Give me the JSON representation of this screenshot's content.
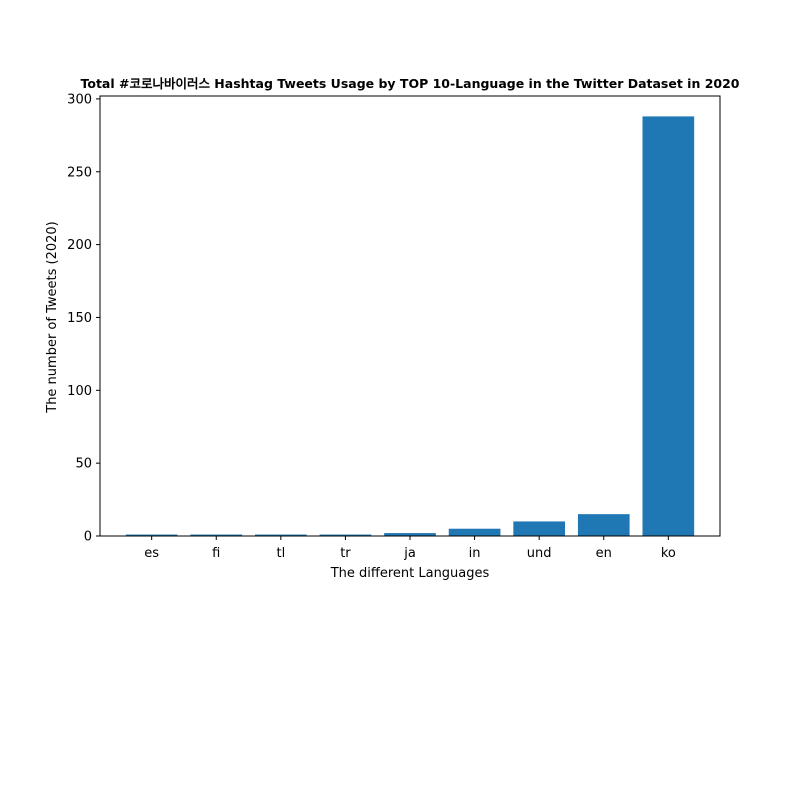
{
  "chart_data": {
    "type": "bar",
    "title": "Total #코로나바이러스 Hashtag Tweets Usage by TOP 10-Language in the Twitter Dataset in 2020",
    "xlabel": "The different Languages",
    "ylabel": "The number of Tweets (2020)",
    "categories": [
      "es",
      "fi",
      "tl",
      "tr",
      "ja",
      "in",
      "und",
      "en",
      "ko"
    ],
    "values": [
      1,
      1,
      1,
      1,
      2,
      5,
      10,
      15,
      288
    ],
    "ylim": [
      0,
      302
    ],
    "yticks": [
      0,
      50,
      100,
      150,
      200,
      250,
      300
    ],
    "grid": false,
    "legend": "none",
    "colors": {
      "bar": "#1f77b4",
      "axis": "#000000"
    }
  }
}
